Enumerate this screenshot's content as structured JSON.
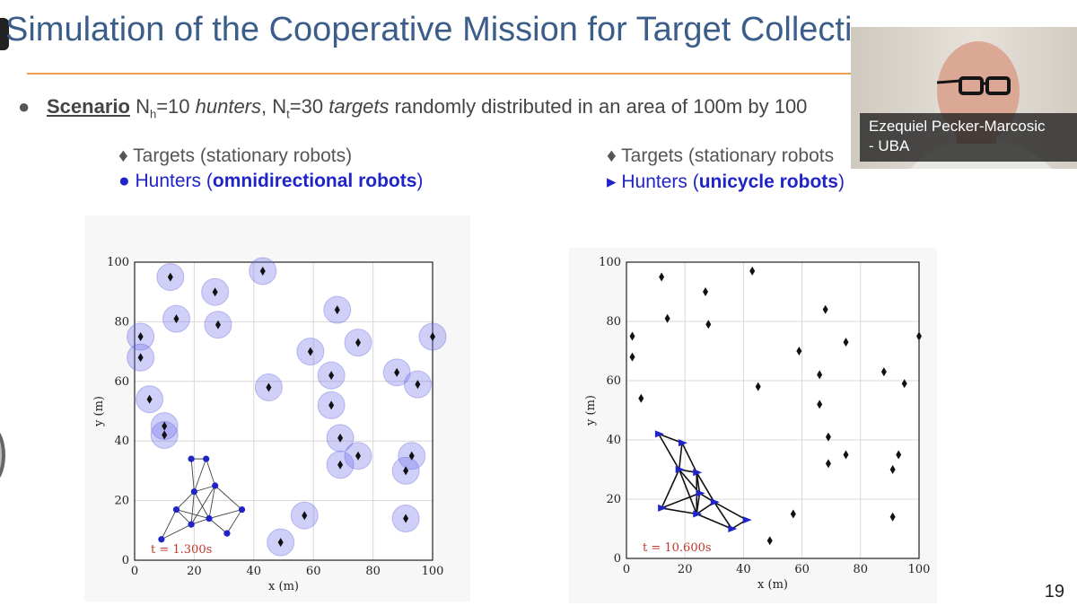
{
  "slide": {
    "title": "Simulation of the Cooperative Mission for Target Collecti",
    "page_number": "19",
    "scenario": {
      "label": "Scenario",
      "N_symbol": "N",
      "h_sub": "h",
      "hunters_eq": "=10 ",
      "hunters_word": "hunters",
      "sep": ", N",
      "t_sub": "t",
      "targets_eq": "=30 ",
      "targets_word": "targets",
      "rest": " randomly distributed in an area of 100m by 100"
    },
    "left_legend": {
      "targets": "♦ Targets (stationary robots)",
      "hunters_prefix": "● Hunters (",
      "hunters_bold": "omnidirectional robots",
      "hunters_suffix": ")"
    },
    "right_legend": {
      "targets": "♦ Targets (stationary robots",
      "hunters_prefix": "▸ Hunters (",
      "hunters_bold": "unicycle robots",
      "hunters_suffix": ")"
    },
    "colors": {
      "title": "#3b5d8a",
      "rule": "#e8a04a",
      "hunter": "#1f24c8",
      "time": "#c0392b"
    }
  },
  "webcam": {
    "name_line1": "Ezequiel Pecker-Marcosic",
    "name_line2": "- UBA"
  },
  "chart_data": [
    {
      "type": "scatter",
      "xlabel": "x (m)",
      "ylabel": "y (m)",
      "xlim": [
        0,
        100
      ],
      "ylim": [
        0,
        100
      ],
      "xticks": [
        "0",
        "20",
        "40",
        "60",
        "80",
        "100"
      ],
      "yticks": [
        "0",
        "20",
        "40",
        "60",
        "80",
        "100"
      ],
      "grid": true,
      "time_label": "t = 1.300s",
      "targets": [
        [
          12,
          95
        ],
        [
          27,
          90
        ],
        [
          43,
          97
        ],
        [
          14,
          81
        ],
        [
          28,
          79
        ],
        [
          2,
          75
        ],
        [
          2,
          68
        ],
        [
          68,
          84
        ],
        [
          59,
          70
        ],
        [
          75,
          73
        ],
        [
          100,
          75
        ],
        [
          5,
          54
        ],
        [
          10,
          45
        ],
        [
          10,
          42
        ],
        [
          45,
          58
        ],
        [
          66,
          62
        ],
        [
          66,
          52
        ],
        [
          69,
          41
        ],
        [
          69,
          32
        ],
        [
          75,
          35
        ],
        [
          88,
          63
        ],
        [
          95,
          59
        ],
        [
          93,
          35
        ],
        [
          91,
          30
        ],
        [
          91,
          14
        ],
        [
          57,
          15
        ],
        [
          49,
          6
        ]
      ],
      "target_circles": true,
      "hunters": [
        [
          19,
          34
        ],
        [
          24,
          34
        ],
        [
          20,
          23
        ],
        [
          27,
          25
        ],
        [
          14,
          17
        ],
        [
          25,
          14
        ],
        [
          36,
          17
        ],
        [
          19,
          12
        ],
        [
          31,
          9
        ],
        [
          9,
          7
        ]
      ],
      "edges": [
        [
          0,
          1
        ],
        [
          0,
          2
        ],
        [
          1,
          2
        ],
        [
          1,
          3
        ],
        [
          2,
          3
        ],
        [
          2,
          4
        ],
        [
          2,
          5
        ],
        [
          3,
          5
        ],
        [
          3,
          6
        ],
        [
          4,
          5
        ],
        [
          4,
          7
        ],
        [
          4,
          9
        ],
        [
          5,
          6
        ],
        [
          5,
          7
        ],
        [
          5,
          8
        ],
        [
          6,
          8
        ],
        [
          7,
          9
        ],
        [
          2,
          7
        ],
        [
          3,
          7
        ]
      ]
    },
    {
      "type": "scatter",
      "xlabel": "x (m)",
      "ylabel": "y (m)",
      "xlim": [
        0,
        100
      ],
      "ylim": [
        0,
        100
      ],
      "xticks": [
        "0",
        "20",
        "40",
        "60",
        "80",
        "100"
      ],
      "yticks": [
        "0",
        "20",
        "40",
        "60",
        "80",
        "100"
      ],
      "grid": true,
      "time_label": "t = 10.600s",
      "targets": [
        [
          12,
          95
        ],
        [
          27,
          90
        ],
        [
          43,
          97
        ],
        [
          14,
          81
        ],
        [
          28,
          79
        ],
        [
          2,
          75
        ],
        [
          2,
          68
        ],
        [
          68,
          84
        ],
        [
          59,
          70
        ],
        [
          75,
          73
        ],
        [
          100,
          75
        ],
        [
          5,
          54
        ],
        [
          45,
          58
        ],
        [
          66,
          62
        ],
        [
          66,
          52
        ],
        [
          69,
          41
        ],
        [
          69,
          32
        ],
        [
          75,
          35
        ],
        [
          88,
          63
        ],
        [
          95,
          59
        ],
        [
          93,
          35
        ],
        [
          91,
          30
        ],
        [
          91,
          14
        ],
        [
          57,
          15
        ],
        [
          49,
          6
        ]
      ],
      "target_circles": false,
      "hunters": [
        [
          11,
          42
        ],
        [
          19,
          39
        ],
        [
          18,
          30
        ],
        [
          24,
          29
        ],
        [
          25,
          22
        ],
        [
          30,
          19
        ],
        [
          12,
          17
        ],
        [
          24,
          15
        ],
        [
          36,
          10
        ],
        [
          41,
          13
        ]
      ],
      "edges": [
        [
          0,
          1
        ],
        [
          0,
          2
        ],
        [
          1,
          2
        ],
        [
          1,
          3
        ],
        [
          2,
          3
        ],
        [
          2,
          4
        ],
        [
          2,
          6
        ],
        [
          3,
          4
        ],
        [
          3,
          5
        ],
        [
          4,
          5
        ],
        [
          4,
          6
        ],
        [
          4,
          7
        ],
        [
          5,
          7
        ],
        [
          5,
          8
        ],
        [
          5,
          9
        ],
        [
          6,
          7
        ],
        [
          7,
          8
        ],
        [
          8,
          9
        ],
        [
          3,
          7
        ],
        [
          2,
          7
        ]
      ]
    }
  ]
}
